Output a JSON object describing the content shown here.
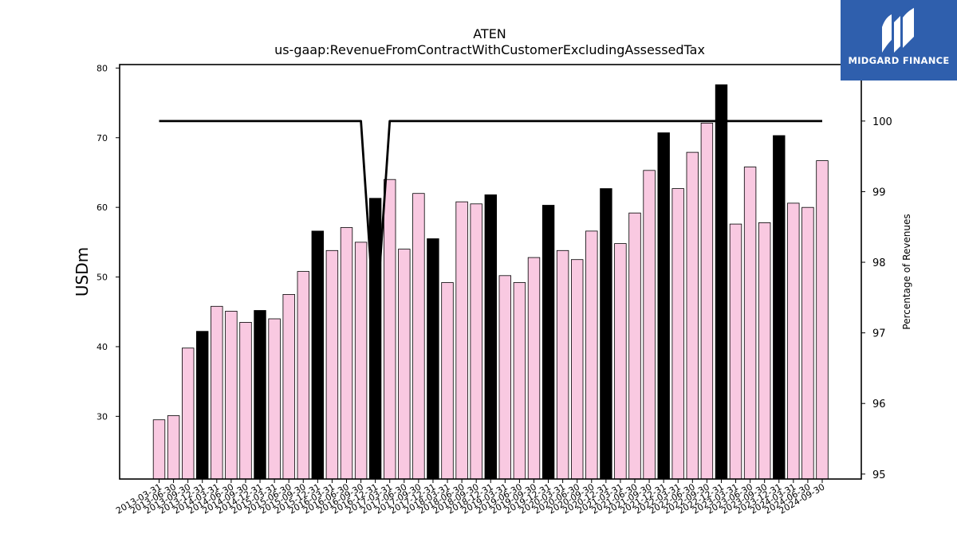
{
  "chart_data": {
    "type": "bar",
    "title": "ATEN",
    "subtitle": "us-gaap:RevenueFromContractWithCustomerExcludingAssessedTax",
    "ylabel": "USDm",
    "y2label": "Percentage of Revenues",
    "ylim": [
      21,
      80.5
    ],
    "y2lim": [
      94.93,
      100.8
    ],
    "yticks": [
      30,
      40,
      50,
      60,
      70,
      80
    ],
    "y2ticks": [
      95,
      96,
      97,
      98,
      99,
      100
    ],
    "categories": [
      "2013-03-31",
      "2013-06-30",
      "2013-09-30",
      "2013-12-31",
      "2014-03-31",
      "2014-06-30",
      "2014-09-30",
      "2014-12-31",
      "2015-03-31",
      "2015-06-30",
      "2015-09-30",
      "2015-12-31",
      "2016-03-31",
      "2016-06-30",
      "2016-09-30",
      "2016-12-31",
      "2017-03-31",
      "2017-06-30",
      "2017-09-30",
      "2017-12-31",
      "2018-03-31",
      "2018-06-30",
      "2018-09-30",
      "2018-12-31",
      "2019-03-31",
      "2019-06-30",
      "2019-09-30",
      "2019-12-31",
      "2020-03-31",
      "2020-06-30",
      "2020-09-30",
      "2020-12-31",
      "2021-03-31",
      "2021-06-30",
      "2021-09-30",
      "2021-12-31",
      "2022-03-31",
      "2022-06-30",
      "2022-09-30",
      "2022-12-31",
      "2023-03-31",
      "2023-06-30",
      "2023-09-30",
      "2023-12-31",
      "2024-03-31",
      "2024-06-30",
      "2024-09-30"
    ],
    "series": [
      {
        "values": [
          29.5,
          30.1,
          39.8,
          42.2,
          45.8,
          45.1,
          43.5,
          45.2,
          44.0,
          47.5,
          50.8,
          56.6,
          53.8,
          57.1,
          55.0,
          61.3,
          64.0,
          54.0,
          62.0,
          55.5,
          49.2,
          60.8,
          60.5,
          61.8,
          50.2,
          49.2,
          52.8,
          60.3,
          53.8,
          52.5,
          56.6,
          62.7,
          54.8,
          59.2,
          65.3,
          70.7,
          62.7,
          67.9,
          72.1,
          77.6,
          57.6,
          65.8,
          57.8,
          70.3,
          60.6,
          60.0,
          66.7
        ],
        "highlight": [
          false,
          false,
          false,
          true,
          false,
          false,
          false,
          true,
          false,
          false,
          false,
          true,
          false,
          false,
          false,
          true,
          false,
          false,
          false,
          true,
          false,
          false,
          false,
          true,
          false,
          false,
          false,
          true,
          false,
          false,
          false,
          true,
          false,
          false,
          false,
          true,
          false,
          false,
          false,
          true,
          false,
          false,
          false,
          true,
          false,
          false,
          false
        ]
      },
      {
        "axis": "right",
        "type": "line",
        "values": [
          100,
          100,
          100,
          100,
          100,
          100,
          100,
          100,
          100,
          100,
          100,
          100,
          100,
          100,
          100,
          97.0,
          100,
          100,
          100,
          100,
          100,
          100,
          100,
          100,
          100,
          100,
          100,
          100,
          100,
          100,
          100,
          100,
          100,
          100,
          100,
          100,
          100,
          100,
          100,
          100,
          100,
          100,
          100,
          100,
          100,
          100,
          100
        ]
      }
    ],
    "colors": {
      "bar": "#f9c9e1",
      "bar_highlight": "#000000",
      "line": "#000000"
    }
  },
  "logo": {
    "text": "MIDGARD FINANCE",
    "bg": "#2f5fad"
  }
}
